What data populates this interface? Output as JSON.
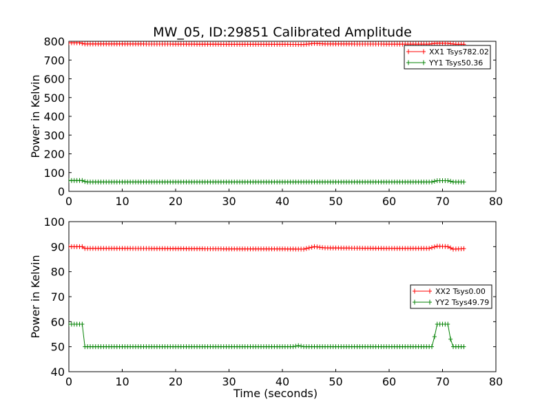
{
  "figure": {
    "title": "MW_05, ID:29851 Calibrated Amplitude"
  },
  "chart_data": [
    {
      "type": "line",
      "title": "MW_05, ID:29851 Calibrated Amplitude",
      "xlabel": "",
      "ylabel": "Power in Kelvin",
      "xlim": [
        0,
        80
      ],
      "ylim": [
        0,
        800
      ],
      "xticks": [
        0,
        10,
        20,
        30,
        40,
        50,
        60,
        70,
        80
      ],
      "yticks": [
        0,
        100,
        200,
        300,
        400,
        500,
        600,
        700,
        800
      ],
      "grid": false,
      "legend_position": "upper-right",
      "marker": "+",
      "x_range": [
        0,
        74.2
      ],
      "x_step": 0.5,
      "series": [
        {
          "name": "XX1 Tsys782.02",
          "color": "#ff0000",
          "profile": [
            [
              0,
              792
            ],
            [
              2.0,
              792
            ],
            [
              3.0,
              786
            ],
            [
              10,
              786
            ],
            [
              20,
              785
            ],
            [
              30,
              784
            ],
            [
              40,
              784
            ],
            [
              44,
              783
            ],
            [
              46,
              789
            ],
            [
              48,
              786
            ],
            [
              60,
              785
            ],
            [
              67.5,
              785
            ],
            [
              69,
              790
            ],
            [
              71,
              789
            ],
            [
              72.5,
              784
            ],
            [
              74.2,
              784
            ]
          ]
        },
        {
          "name": "YY1 Tsys50.36",
          "color": "#008000",
          "profile": [
            [
              0,
              58
            ],
            [
              2.5,
              58
            ],
            [
              3.2,
              50
            ],
            [
              68,
              50
            ],
            [
              69,
              57
            ],
            [
              71,
              57
            ],
            [
              72,
              50
            ],
            [
              74.2,
              50
            ]
          ]
        }
      ]
    },
    {
      "type": "line",
      "title": "",
      "xlabel": "Time (seconds)",
      "ylabel": "Power in Kelvin",
      "xlim": [
        0,
        80
      ],
      "ylim": [
        40,
        100
      ],
      "xticks": [
        0,
        10,
        20,
        30,
        40,
        50,
        60,
        70,
        80
      ],
      "yticks": [
        40,
        50,
        60,
        70,
        80,
        90,
        100
      ],
      "grid": false,
      "legend_position": "center-right",
      "marker": "+",
      "x_range": [
        0,
        74.2
      ],
      "x_step": 0.5,
      "series": [
        {
          "name": "XX2 Tsys0.00",
          "color": "#ff0000",
          "profile": [
            [
              0,
              90
            ],
            [
              2.5,
              90
            ],
            [
              3.0,
              89.3
            ],
            [
              10,
              89.3
            ],
            [
              20,
              89.2
            ],
            [
              30,
              89.1
            ],
            [
              40,
              89.1
            ],
            [
              44,
              89.0
            ],
            [
              46,
              90
            ],
            [
              48,
              89.5
            ],
            [
              60,
              89.3
            ],
            [
              67.5,
              89.3
            ],
            [
              69,
              90.2
            ],
            [
              71,
              90.0
            ],
            [
              72,
              89.0
            ],
            [
              74.2,
              89.2
            ]
          ]
        },
        {
          "name": "YY2 Tsys49.79",
          "color": "#008000",
          "profile": [
            [
              0,
              59
            ],
            [
              2.5,
              59
            ],
            [
              3.0,
              50
            ],
            [
              42,
              50
            ],
            [
              43,
              50.4
            ],
            [
              44,
              50
            ],
            [
              68,
              50
            ],
            [
              68.5,
              54
            ],
            [
              69,
              59
            ],
            [
              71,
              59
            ],
            [
              71.5,
              53
            ],
            [
              72,
              50
            ],
            [
              74.2,
              50
            ]
          ]
        }
      ]
    }
  ]
}
